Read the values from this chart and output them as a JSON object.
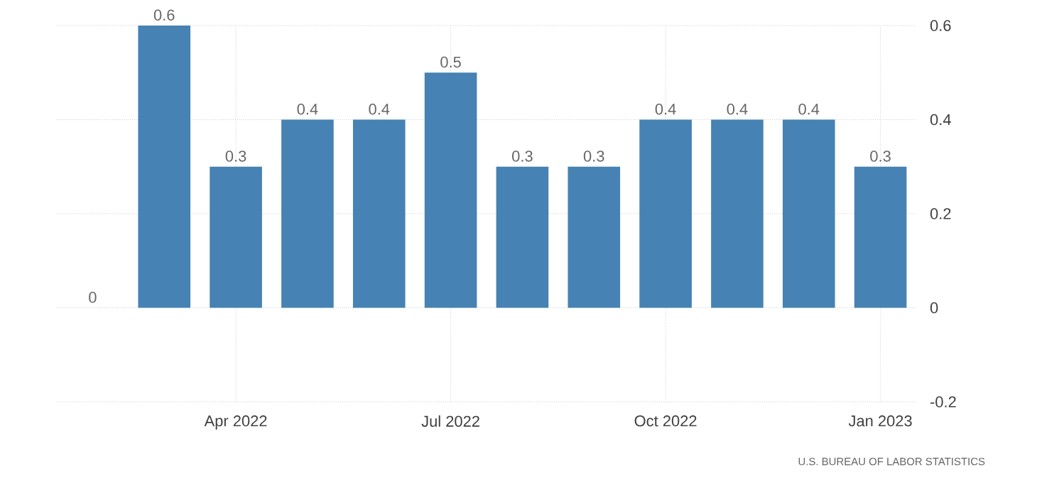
{
  "chart_data": {
    "type": "bar",
    "categories": [
      null,
      null,
      "Apr 2022",
      null,
      null,
      "Jul 2022",
      null,
      null,
      "Oct 2022",
      null,
      null,
      "Jan 2023"
    ],
    "values": [
      0,
      0.6,
      0.3,
      0.4,
      0.4,
      0.5,
      0.3,
      0.3,
      0.4,
      0.4,
      0.4,
      0.3
    ],
    "color": "#4682b4",
    "ylim": [
      -0.2,
      0.6
    ],
    "yticks": [
      -0.2,
      0,
      0.2,
      0.4,
      0.6
    ],
    "grid": true,
    "data_labels": true,
    "annotations": [
      "U.S. BUREAU OF LABOR STATISTICS"
    ]
  }
}
